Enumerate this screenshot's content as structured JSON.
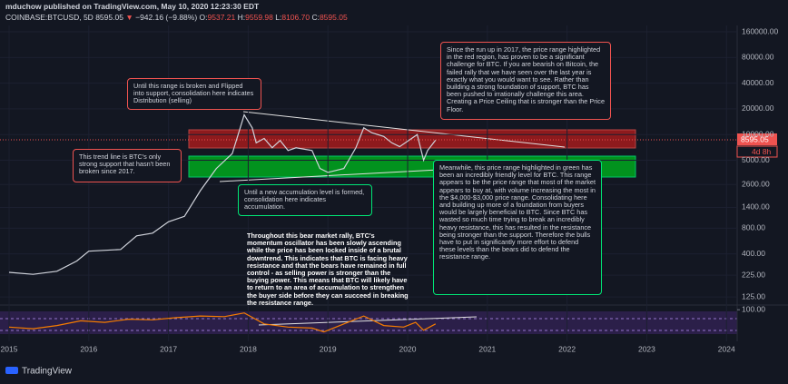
{
  "header": {
    "publisher": "mduchow published on TradingView.com, May 10, 2020 12:23:30 EDT",
    "symbol": "COINBASE:BTCUSD, 5D",
    "price": "8595.05",
    "arrow": "▼",
    "change": "−942.16 (−9.88%)",
    "o_label": "O:",
    "open": "9537.21",
    "h_label": "H:",
    "high": "9559.98",
    "l_label": "L:",
    "low": "8106.70",
    "c_label": "C:",
    "close": "8595.05",
    "countdown": "4d 8h"
  },
  "chart_data": [
    {
      "type": "line",
      "color": "#d1d4dc",
      "log_scale": true,
      "grid": true,
      "x": [
        2015.0,
        2015.3,
        2015.6,
        2015.85,
        2016.0,
        2016.4,
        2016.6,
        2016.8,
        2017.0,
        2017.2,
        2017.4,
        2017.6,
        2017.8,
        2017.95,
        2018.05,
        2018.1,
        2018.2,
        2018.3,
        2018.4,
        2018.5,
        2018.6,
        2018.8,
        2018.9,
        2019.0,
        2019.2,
        2019.35,
        2019.45,
        2019.55,
        2019.7,
        2019.8,
        2019.9,
        2020.05,
        2020.12,
        2020.2,
        2020.25,
        2020.35
      ],
      "values": [
        243,
        230,
        250,
        330,
        430,
        450,
        650,
        700,
        950,
        1100,
        2200,
        4000,
        6000,
        17000,
        12000,
        8000,
        9000,
        7000,
        8500,
        6500,
        7000,
        6500,
        4000,
        3600,
        4000,
        7000,
        12000,
        10500,
        9500,
        8000,
        7200,
        9000,
        10000,
        5000,
        6500,
        8595
      ],
      "xlim": [
        2014.886,
        2024.134
      ],
      "xticks": [
        2015,
        2016,
        2017,
        2018,
        2019,
        2020,
        2021,
        2022,
        2023,
        2024
      ],
      "ylim": [
        103,
        190000
      ],
      "yticks": [
        {
          "value": 160000,
          "label": "160000.00"
        },
        {
          "value": 80000,
          "label": "80000.00"
        },
        {
          "value": 40000,
          "label": "40000.00"
        },
        {
          "value": 20000,
          "label": "20000.00"
        },
        {
          "value": 10000,
          "label": "10000.00"
        },
        {
          "value": 5000,
          "label": "5000.00"
        },
        {
          "value": 2600,
          "label": "2600.00"
        },
        {
          "value": 1400,
          "label": "1400.00"
        },
        {
          "value": 800,
          "label": "800.00"
        },
        {
          "value": 400,
          "label": "400.00"
        },
        {
          "value": 225,
          "label": "225.00"
        },
        {
          "value": 125,
          "label": "125.00"
        }
      ],
      "annotations": [
        "Until this range is broken and Flipped into support, consolidation here indicates Distribution (selling)",
        "This trend line is BTC's only strong support that hasn't been broken since 2017.",
        "Until a new accumulation level is formed, consolidation here indicates accumulation.",
        "Since the run up in 2017, the price range highlighted in the red region, has proven to be a significant challenge for BTC. If you are bearish on Bitcoin, the failed rally that we have seen over the last year is exactly what you would want to see. Rather than building a strong foundation of support, BTC has been pushed to irrationally challenge this area. Creating a Price Ceiling that is stronger than the Price Floor.",
        "Meanwhile, this price range highlighted in green has been an incredibly friendly level for BTC. This range appears to be the price range that most of the market appears to buy at, with volume increasing the most in the $4,000-$3,000 price range. Consolidating here and building up more of a foundation from buyers would be largely beneficial to BTC. Since BTC has wasted so much time trying to break an incredibly heavy resistance, this has resulted in the resistance being stronger than the support. Therefore the bulls have to put in significantly more effort to defend these levels than the bears did to defend the resistance range.",
        "Throughout this bear market rally, BTC's momentum oscillator has been slowly ascending while the price has been locked inside of a brutal downtrend. This indicates that BTC is facing heavy resistance and that the bears have remained in full control - as selling power is stronger than the buying power. This means that BTC will likely have to return to an area of accumulation to strengthen the buyer side before they can succeed in breaking the resistance range."
      ]
    },
    {
      "type": "line",
      "color": "#f57c00",
      "x": [
        2015.0,
        2015.3,
        2015.6,
        2015.9,
        2016.2,
        2016.5,
        2016.8,
        2017.1,
        2017.4,
        2017.7,
        2017.95,
        2018.2,
        2018.5,
        2018.8,
        2018.95,
        2019.2,
        2019.45,
        2019.7,
        2019.95,
        2020.1,
        2020.2,
        2020.35
      ],
      "values": [
        45,
        40,
        50,
        65,
        60,
        70,
        68,
        75,
        80,
        78,
        90,
        55,
        45,
        42,
        30,
        55,
        80,
        50,
        45,
        60,
        35,
        55
      ],
      "ylim": [
        0,
        112
      ],
      "yticks": [
        {
          "value": 100,
          "label": "100.00"
        }
      ]
    }
  ],
  "footer": {
    "brand": "TradingView"
  }
}
